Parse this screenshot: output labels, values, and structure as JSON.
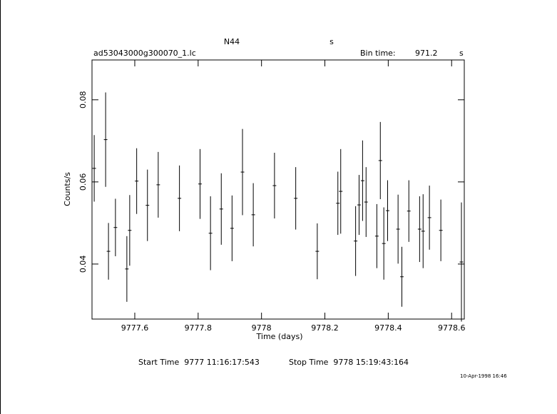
{
  "chart_data": {
    "type": "errorbar",
    "title": "N44",
    "title_right": "s",
    "subtitle": "ad53043000g300070_1.lc",
    "bin_time_label": "Bin time:",
    "bin_time": 971.2,
    "bin_time_unit": "s",
    "xlabel": "Time (days)",
    "ylabel": "Counts/s",
    "x": [
      9777.472,
      9777.508,
      9777.517,
      9777.539,
      9777.575,
      9777.584,
      9777.606,
      9777.64,
      9777.674,
      9777.741,
      9777.806,
      9777.839,
      9777.873,
      9777.907,
      9777.94,
      9777.974,
      9778.041,
      9778.108,
      9778.176,
      9778.241,
      9778.25,
      9778.297,
      9778.308,
      9778.319,
      9778.33,
      9778.364,
      9778.375,
      9778.386,
      9778.398,
      9778.431,
      9778.443,
      9778.465,
      9778.499,
      9778.51,
      9778.53,
      9778.566,
      9778.631
    ],
    "values": [
      0.0633,
      0.0703,
      0.0431,
      0.0489,
      0.0388,
      0.0482,
      0.0602,
      0.0543,
      0.0593,
      0.056,
      0.0595,
      0.0475,
      0.0534,
      0.0487,
      0.0624,
      0.052,
      0.0591,
      0.056,
      0.0431,
      0.0548,
      0.0577,
      0.0456,
      0.0544,
      0.0603,
      0.0551,
      0.0468,
      0.0652,
      0.045,
      0.053,
      0.0485,
      0.0369,
      0.0529,
      0.0485,
      0.048,
      0.0513,
      0.0482,
      0.0405
    ],
    "errors": [
      0.0081,
      0.0115,
      0.0069,
      0.007,
      0.008,
      0.0086,
      0.008,
      0.0087,
      0.008,
      0.008,
      0.0085,
      0.009,
      0.0087,
      0.008,
      0.0105,
      0.0077,
      0.008,
      0.0076,
      0.0068,
      0.0077,
      0.0103,
      0.0085,
      0.0073,
      0.0098,
      0.0085,
      0.0078,
      0.0094,
      0.0088,
      0.0074,
      0.0084,
      0.0073,
      0.0075,
      0.008,
      0.009,
      0.0078,
      0.0075,
      0.0145
    ],
    "xerr": 0.0056,
    "color": "#000000",
    "xlim": [
      9777.465,
      9778.64
    ],
    "xticks": [
      9777.6,
      9777.8,
      9778,
      9778.2,
      9778.4,
      9778.6
    ],
    "ylim": [
      0.0266,
      0.0897
    ],
    "yticks": [
      0.04,
      0.06,
      0.08
    ],
    "start_time": "Start Time  9777 11:16:17:543",
    "stop_time": "Stop Time  9778 15:19:43:164",
    "timestamp": "10-Apr-1998 16:46"
  }
}
